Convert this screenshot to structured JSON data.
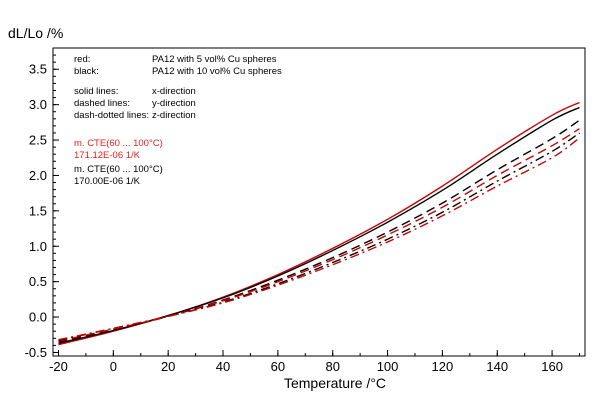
{
  "chart_data": {
    "type": "line",
    "title": "",
    "xlabel": "Temperature /°C",
    "ylabel": "dL/Lo /%",
    "xlim": [
      -22,
      172
    ],
    "ylim": [
      -0.55,
      3.8
    ],
    "xticks": [
      -20,
      0,
      20,
      40,
      60,
      80,
      100,
      120,
      140,
      160
    ],
    "yticks": [
      -0.5,
      0.0,
      0.5,
      1.0,
      1.5,
      2.0,
      2.5,
      3.0,
      3.5
    ],
    "xtick_labels": [
      "-20",
      "0",
      "20",
      "40",
      "60",
      "80",
      "100",
      "120",
      "140",
      "160"
    ],
    "ytick_labels": [
      "-0.5",
      "0.0",
      "0.5",
      "1.0",
      "1.5",
      "2.0",
      "2.5",
      "3.0",
      "3.5"
    ],
    "grid": false,
    "legend_position": "top-left",
    "x": [
      -20,
      0,
      20,
      40,
      60,
      80,
      100,
      120,
      140,
      160,
      170
    ],
    "series": [
      {
        "color": "#cc0000",
        "dash": "solid",
        "values": [
          -0.39,
          -0.2,
          0.02,
          0.28,
          0.6,
          0.97,
          1.38,
          1.85,
          2.37,
          2.85,
          3.03
        ]
      },
      {
        "color": "#000000",
        "dash": "solid",
        "values": [
          -0.37,
          -0.19,
          0.02,
          0.27,
          0.58,
          0.94,
          1.34,
          1.79,
          2.3,
          2.78,
          2.96
        ]
      },
      {
        "color": "#000000",
        "dash": "dashed",
        "values": [
          -0.35,
          -0.18,
          0.01,
          0.24,
          0.52,
          0.84,
          1.2,
          1.61,
          2.08,
          2.52,
          2.78
        ]
      },
      {
        "color": "#cc0000",
        "dash": "dashed",
        "values": [
          -0.34,
          -0.17,
          0.01,
          0.23,
          0.5,
          0.81,
          1.16,
          1.55,
          2.0,
          2.42,
          2.66
        ]
      },
      {
        "color": "#000000",
        "dash": "dashdot",
        "values": [
          -0.33,
          -0.16,
          0.01,
          0.21,
          0.47,
          0.77,
          1.1,
          1.48,
          1.92,
          2.34,
          2.6
        ]
      },
      {
        "color": "#cc0000",
        "dash": "dashdot",
        "values": [
          -0.32,
          -0.16,
          0.01,
          0.2,
          0.45,
          0.74,
          1.06,
          1.43,
          1.85,
          2.25,
          2.53
        ]
      }
    ],
    "annotations": [
      {
        "key": "red:",
        "value": "PA12 with 5 vol% Cu spheres",
        "color": "#000000"
      },
      {
        "key": "black:",
        "value": "PA12 with 10 vol% Cu spheres",
        "color": "#000000"
      },
      {
        "key": "solid lines:",
        "value": "x-direction",
        "color": "#000000"
      },
      {
        "key": "dashed lines:",
        "value": "y-direction",
        "color": "#000000"
      },
      {
        "key": "dash-dotted lines:",
        "value": "z-direction",
        "color": "#000000"
      }
    ],
    "cte_labels": [
      {
        "line1": "m. CTE(60 ... 100°C)",
        "line2": "171.12E-06 1/K",
        "color": "#e8221d"
      },
      {
        "line1": "m. CTE(60 ... 100°C)",
        "line2": "170.00E-06 1/K",
        "color": "#000000"
      }
    ]
  }
}
